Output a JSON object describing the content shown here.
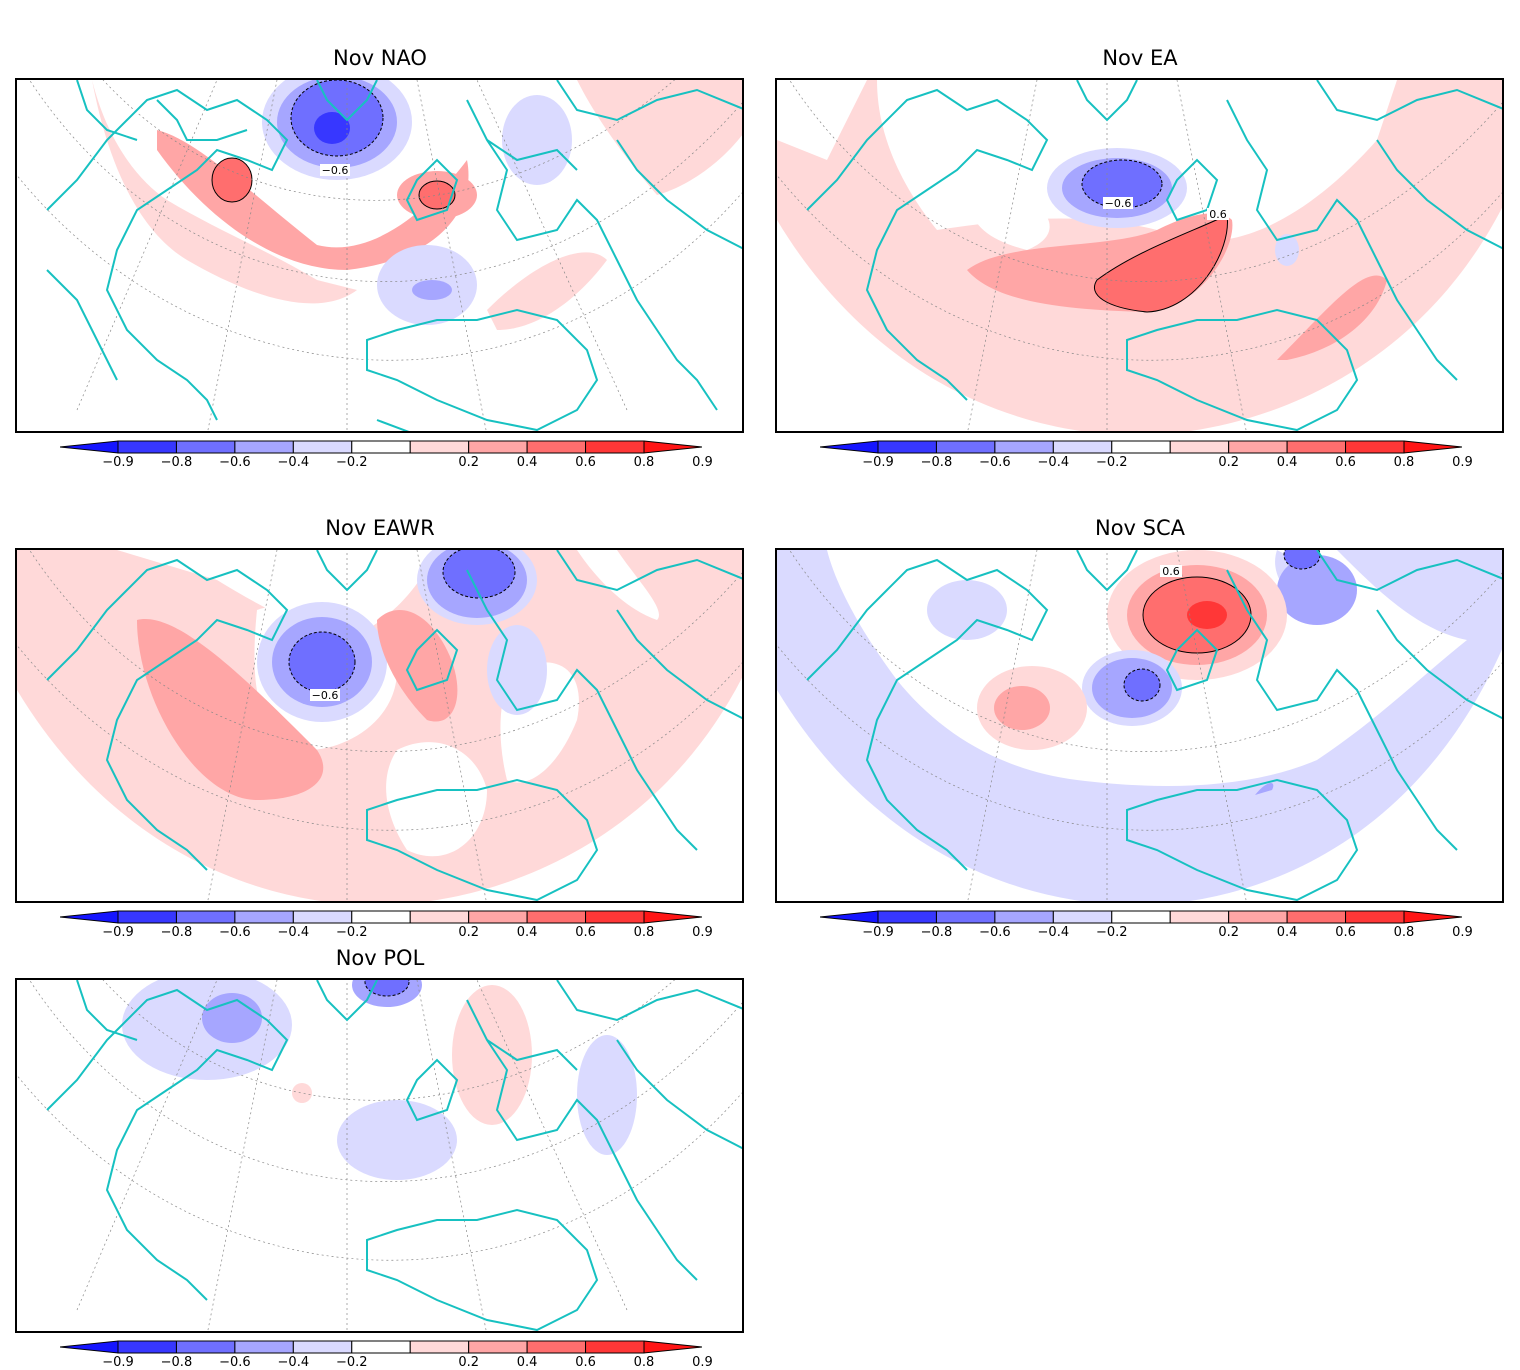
{
  "colorbar": {
    "ticks": [
      "−0.9",
      "−0.8",
      "−0.6",
      "−0.4",
      "−0.2",
      "0.2",
      "0.4",
      "0.6",
      "0.8",
      "0.9"
    ],
    "colors": {
      "neg_extreme": "#1515ff",
      "neg_3": "#3737ff",
      "neg_2": "#6f6fff",
      "neg_1": "#a6a6ff",
      "neg_0": "#dadaff",
      "zero": "#ffffff",
      "pos_0": "#ffd9d9",
      "pos_1": "#ffa6a6",
      "pos_2": "#ff6e6e",
      "pos_3": "#ff3737",
      "pos_extreme": "#ff1515"
    }
  },
  "coastline_color": "#17c1c1",
  "panels": [
    {
      "id": "nao",
      "title": "Nov NAO",
      "contour_labels": [
        "−0.6"
      ]
    },
    {
      "id": "ea",
      "title": "Nov EA",
      "contour_labels": [
        "−0.6",
        "0.6"
      ]
    },
    {
      "id": "eawr",
      "title": "Nov EAWR",
      "contour_labels": [
        "−0.6"
      ]
    },
    {
      "id": "sca",
      "title": "Nov SCA",
      "contour_labels": [
        "0.6"
      ]
    },
    {
      "id": "pol",
      "title": "Nov POL",
      "contour_labels": []
    }
  ]
}
